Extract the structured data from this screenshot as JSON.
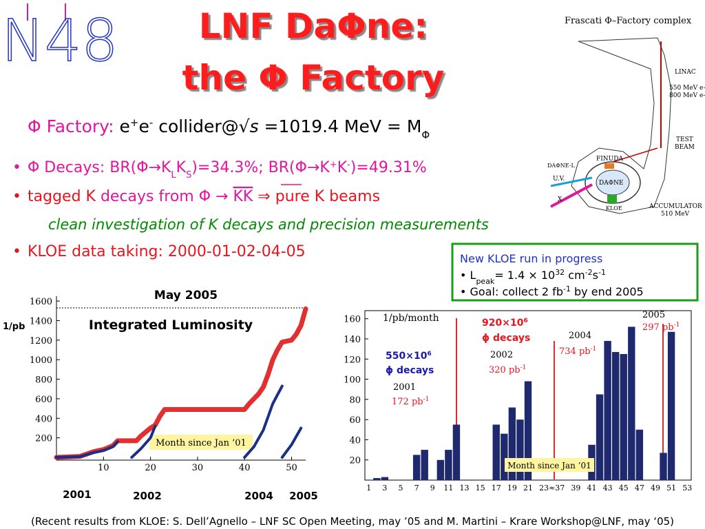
{
  "logo": "N48",
  "header": {
    "title": [
      "LNF DaΦne:",
      "the Φ Factory"
    ],
    "subtitle": [
      "Φ Factory:",
      " e",
      "+",
      "e",
      "-",
      " collider@",
      "√",
      "s",
      " =1019.4 MeV = M",
      "Φ"
    ]
  },
  "complex_diagram": {
    "title": "Frascati Φ–Factory complex",
    "labels": [
      "LINAC",
      "550 MeV e+",
      "800 MeV e-",
      "TEST",
      "BEAM",
      "FINUDA",
      "DAΦNE",
      "DAΦNE-L",
      "U.V.",
      "X",
      "KLOE",
      "ACCUMULATOR",
      "510 MeV"
    ]
  },
  "bullets": [
    [
      "Φ Decays: BR(Φ→K",
      "L",
      "K",
      "S",
      ")=34.3%; BR(Φ→K",
      "+",
      "K",
      "-",
      ")=49.31%"
    ],
    [
      "tagged K",
      " decays from Φ → ",
      "KK",
      "  ⇒  ",
      "pure K beams"
    ],
    [
      "clean investigation of  K decays and precision measurements"
    ],
    [
      "KLOE data taking: 2000-01-02-04-05"
    ]
  ],
  "news_box": [
    [
      "New KLOE run in progress"
    ],
    [
      "• L",
      "peak",
      "= 1.4 × 10",
      "32",
      " cm",
      "-2",
      "s",
      "-1"
    ],
    [
      "• Goal:  collect  2 fb",
      "-1",
      "  by end 2005"
    ]
  ],
  "footer": "(Recent results from KLOE: S. Dell’Agnello – LNF SC Open Meeting, may ’05  and  M. Martini – Krare Workshop@LNF, may ‘05)",
  "chart_data": [
    {
      "type": "line",
      "title": "Integrated Luminosity",
      "y_label": "1/pb",
      "x_label": "Month since Jan ’01",
      "annotation": "May 2005",
      "year_labels": [
        "2001",
        "2002",
        "2004",
        "2005"
      ],
      "reference_line": 1530,
      "xlim": [
        0,
        53
      ],
      "xticks": [
        10,
        20,
        30,
        40,
        50
      ],
      "ylim": [
        0,
        1650
      ],
      "yticks": [
        200,
        400,
        600,
        800,
        1000,
        1200,
        1400,
        1600
      ],
      "series": [
        {
          "color": "#e03030",
          "x": [
            0,
            5,
            8,
            10,
            12,
            13,
            17,
            18,
            20,
            21,
            22,
            23,
            40,
            41,
            43,
            44,
            45,
            46,
            47,
            48,
            50,
            51,
            52,
            53
          ],
          "values": [
            0,
            10,
            60,
            80,
            120,
            170,
            170,
            220,
            300,
            330,
            420,
            490,
            490,
            550,
            650,
            720,
            850,
            1000,
            1100,
            1180,
            1200,
            1260,
            1350,
            1520
          ]
        },
        {
          "color": "#1a2f8a",
          "x": [
            0,
            5,
            8,
            10,
            12,
            13
          ],
          "values": [
            0,
            8,
            50,
            70,
            110,
            160
          ]
        },
        {
          "color": "#1a2f8a",
          "x": [
            16,
            18,
            20,
            21
          ],
          "values": [
            0,
            90,
            200,
            320
          ]
        },
        {
          "color": "#1a2f8a",
          "x": [
            40,
            42,
            44,
            46,
            48
          ],
          "values": [
            0,
            110,
            280,
            550,
            730
          ]
        },
        {
          "color": "#1a2f8a",
          "x": [
            48,
            50,
            52
          ],
          "values": [
            0,
            130,
            300
          ]
        }
      ]
    },
    {
      "type": "bar",
      "y_label": "1/pb/month",
      "x_label": "Month since Jan ’01",
      "color": "#1f2a6e",
      "categories": [
        "1",
        null,
        "3",
        null,
        "5",
        null,
        "7",
        null,
        "9",
        null,
        "11",
        null,
        "13",
        null,
        "15",
        null,
        "17",
        null,
        "19",
        null,
        "21",
        null,
        "23",
        "≈",
        "37",
        null,
        "39",
        null,
        "41",
        null,
        "43",
        null,
        "45",
        null,
        "47",
        null,
        "49",
        null,
        "51",
        null,
        "53"
      ],
      "values": [
        0,
        2,
        3,
        0,
        0,
        0,
        25,
        30,
        0,
        20,
        30,
        55,
        0,
        0,
        0,
        0,
        55,
        46,
        72,
        60,
        98,
        0,
        0,
        null,
        0,
        0,
        0,
        0,
        35,
        85,
        138,
        127,
        125,
        152,
        50,
        0,
        0,
        27,
        147,
        0,
        0
      ],
      "ylim": [
        0,
        168
      ],
      "yticks": [
        20,
        40,
        60,
        80,
        100,
        120,
        140,
        160
      ],
      "annotations": [
        [
          "550×10",
          "6",
          "ϕ  decays"
        ],
        [
          "920×10",
          "6",
          "ϕ  decays"
        ],
        [
          "2001",
          "172 pb",
          "-1"
        ],
        [
          "2002",
          "320 pb",
          "-1"
        ],
        [
          "2004",
          "734 pb",
          "-1"
        ],
        [
          "2005",
          "297 pb",
          "-1"
        ]
      ]
    }
  ]
}
